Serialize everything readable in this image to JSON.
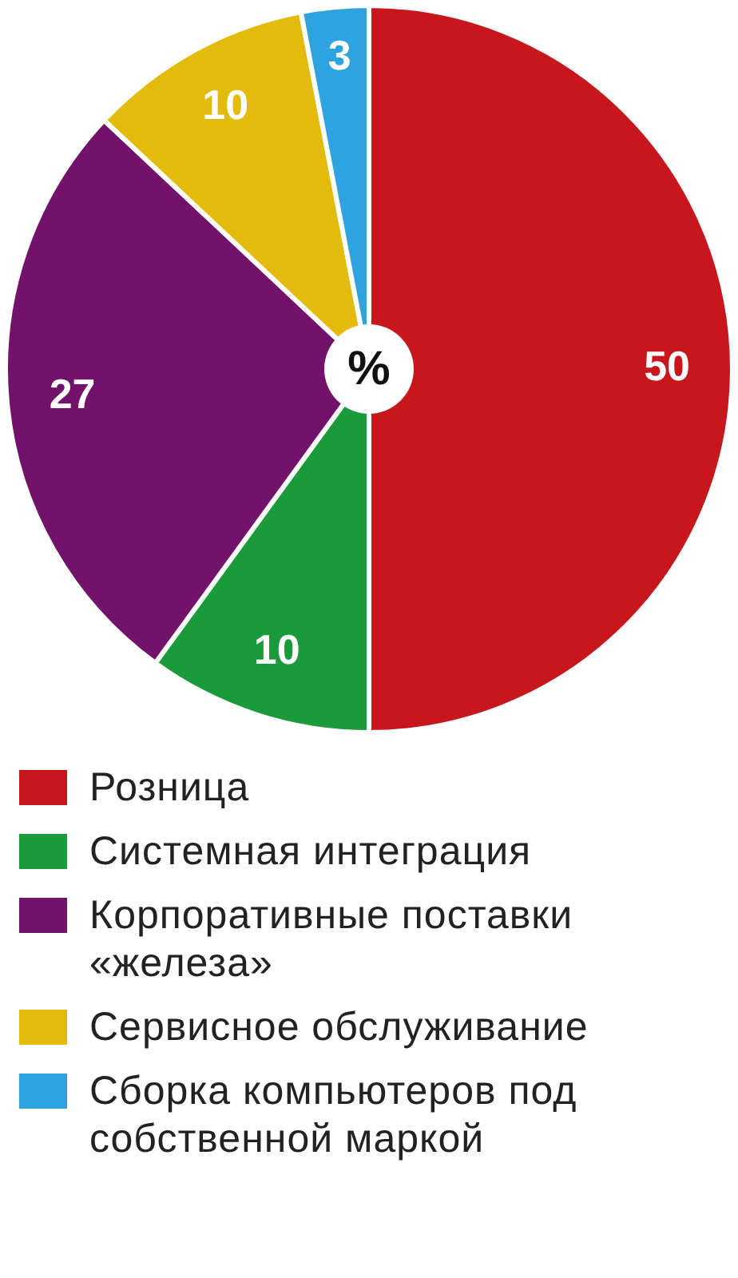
{
  "chart_data": {
    "type": "pie",
    "categories": [
      "Розница",
      "Системная интеграция",
      "Корпоративные поставки «железа»",
      "Сервисное обслуживание",
      "Сборка компьютеров под собственной маркой"
    ],
    "values": [
      50,
      10,
      27,
      10,
      3
    ],
    "colors": [
      "#c8161d",
      "#1a9a3a",
      "#73126b",
      "#e3bb0c",
      "#2fa3e0"
    ],
    "annotations": [
      "%"
    ],
    "data_labels": true,
    "legend": "bottom"
  }
}
